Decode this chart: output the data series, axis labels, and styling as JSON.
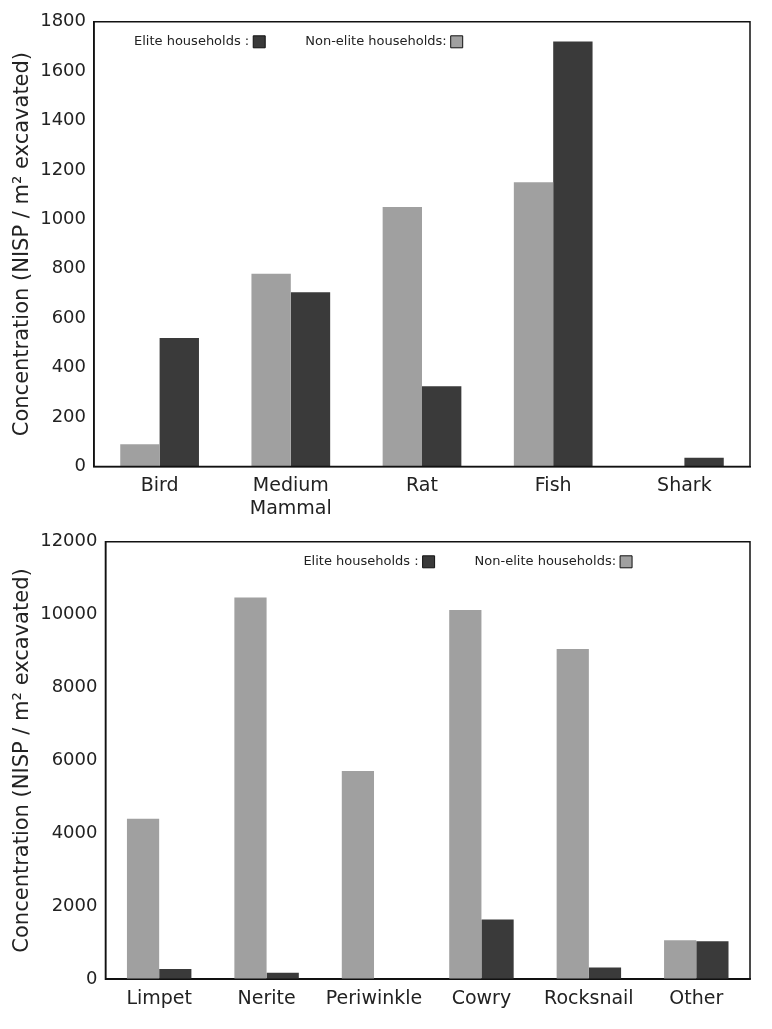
{
  "chart_data": [
    {
      "type": "bar",
      "ylabel": "Concentration (NISP / m² excavated)",
      "categories": [
        "Bird",
        "Medium Mammal",
        "Rat",
        "Fish",
        "Shark"
      ],
      "ylim": [
        0,
        1800
      ],
      "yticks": [
        0,
        200,
        400,
        600,
        800,
        1000,
        1200,
        1400,
        1600,
        1800
      ],
      "grid": false,
      "legend": "top left",
      "series": [
        {
          "name": "Non-elite households:",
          "color": "#a0a0a0",
          "values": [
            90,
            780,
            1050,
            1150,
            null
          ]
        },
        {
          "name": "Elite households :",
          "color": "#3a3a3a",
          "values": [
            520,
            705,
            325,
            1720,
            35
          ]
        }
      ]
    },
    {
      "type": "bar",
      "ylabel": "Concentration (NISP / m² excavated)",
      "categories": [
        "Limpet",
        "Nerite",
        "Periwinkle",
        "Cowry",
        "Rocksnail",
        "Other"
      ],
      "ylim": [
        0,
        12000
      ],
      "yticks": [
        0,
        2000,
        4000,
        6000,
        8000,
        10000,
        12000
      ],
      "grid": false,
      "legend": "top",
      "series": [
        {
          "name": "Non-elite households:",
          "color": "#a0a0a0",
          "values": [
            4400,
            10470,
            5710,
            10130,
            9060,
            1070
          ]
        },
        {
          "name": "Elite households :",
          "color": "#3a3a3a",
          "values": [
            280,
            180,
            null,
            1640,
            320,
            1040
          ]
        }
      ]
    }
  ]
}
